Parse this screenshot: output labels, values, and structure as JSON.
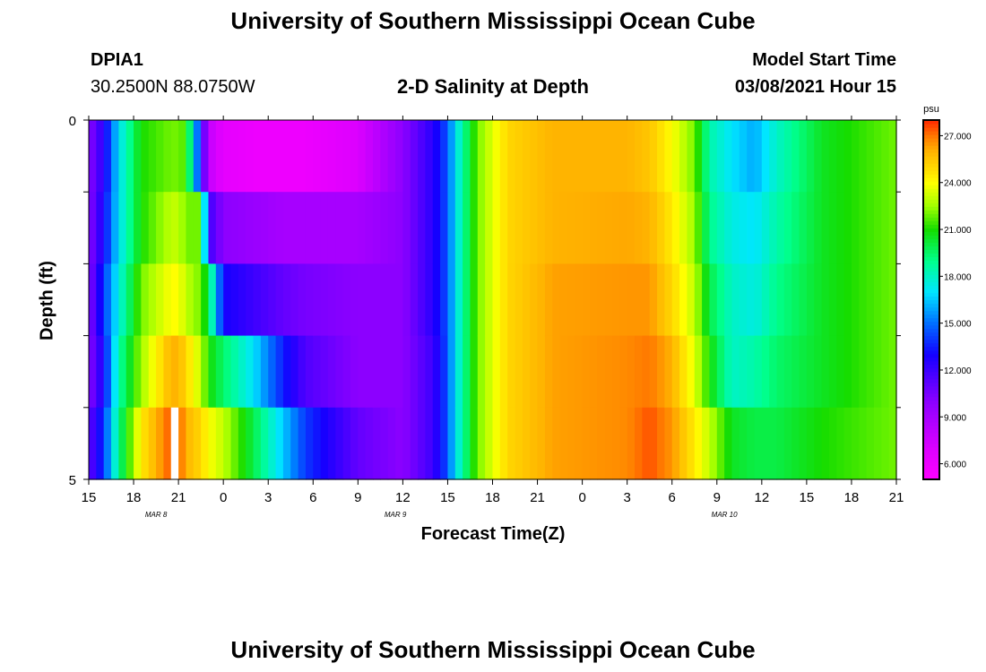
{
  "title_top": "University of Southern Mississippi Ocean Cube",
  "title_bottom": "University of Southern Mississippi Ocean Cube",
  "station": {
    "id": "DPIA1",
    "coords": "30.2500N 88.0750W"
  },
  "model": {
    "label": "Model Start Time",
    "value": "03/08/2021 Hour 15"
  },
  "chart_data": {
    "type": "heatmap",
    "title": "2-D Salinity at Depth",
    "xlabel": "Forecast Time(Z)",
    "ylabel": "Depth (ft)",
    "x_tick_labels": [
      "15",
      "18",
      "21",
      "0",
      "3",
      "6",
      "9",
      "12",
      "15",
      "18",
      "21",
      "0",
      "3",
      "6",
      "9",
      "12",
      "15",
      "18",
      "21"
    ],
    "x_start_hour": 15,
    "x_end_hour": 69,
    "date_labels": [
      {
        "hour": 19.5,
        "text": "MAR 8"
      },
      {
        "hour": 35.5,
        "text": "MAR 9"
      },
      {
        "hour": 57.5,
        "text": "MAR 10"
      }
    ],
    "y_tick_labels": [
      "0",
      "5"
    ],
    "ylim": [
      0,
      5
    ],
    "depth_layers": 5,
    "colorbar": {
      "unit": "psu",
      "min": 5.0,
      "max": 28.0,
      "tick_labels": [
        "27.000",
        "24.000",
        "21.000",
        "18.000",
        "15.000",
        "12.000",
        "9.000",
        "6.000"
      ],
      "tick_values": [
        27,
        24,
        21,
        18,
        15,
        12,
        9,
        6
      ]
    },
    "keyframes": [
      {
        "hour": 15.0,
        "layers": [
          10,
          10,
          10,
          10,
          11
        ]
      },
      {
        "hour": 16.0,
        "layers": [
          12.5,
          13,
          14,
          13,
          14
        ]
      },
      {
        "hour": 17.0,
        "layers": [
          17,
          17,
          17.5,
          18.5,
          19
        ]
      },
      {
        "hour": 18.5,
        "layers": [
          21,
          21,
          22,
          22.5,
          24.5
        ]
      },
      {
        "hour": 20.5,
        "layers": [
          22,
          23,
          24,
          26,
          27.5
        ]
      },
      {
        "hour": 21.0,
        "layers": [
          22,
          23,
          24,
          26,
          27.5
        ]
      },
      {
        "hour": 21.5,
        "layers": [
          21.5,
          22,
          23,
          25,
          26
        ]
      },
      {
        "hour": 22.5,
        "layers": [
          13,
          22,
          22,
          23,
          25
        ]
      },
      {
        "hour": 23.0,
        "layers": [
          8,
          12,
          20,
          21,
          24
        ]
      },
      {
        "hour": 24.0,
        "layers": [
          6.5,
          10,
          13,
          19.5,
          23
        ]
      },
      {
        "hour": 26.0,
        "layers": [
          6,
          9.5,
          12,
          17,
          20
        ]
      },
      {
        "hour": 28.0,
        "layers": [
          6,
          9,
          11,
          13.5,
          16.5
        ]
      },
      {
        "hour": 29.5,
        "layers": [
          6,
          9,
          10.5,
          11.5,
          14
        ]
      },
      {
        "hour": 33.0,
        "layers": [
          7,
          9,
          10,
          10,
          11
        ]
      },
      {
        "hour": 36.0,
        "layers": [
          10,
          10,
          10,
          10,
          10
        ]
      },
      {
        "hour": 38.0,
        "layers": [
          12.5,
          12.5,
          12.5,
          12,
          12
        ]
      },
      {
        "hour": 39.0,
        "layers": [
          14.5,
          14.5,
          14.5,
          14.5,
          14.5
        ]
      },
      {
        "hour": 39.5,
        "layers": [
          17,
          17,
          17,
          17,
          17
        ]
      },
      {
        "hour": 41.0,
        "layers": [
          22,
          22,
          22,
          22,
          22
        ]
      },
      {
        "hour": 43.0,
        "layers": [
          25,
          25,
          25,
          25,
          25
        ]
      },
      {
        "hour": 46.0,
        "layers": [
          26,
          26,
          26.3,
          26.3,
          26.3
        ]
      },
      {
        "hour": 51.0,
        "layers": [
          26,
          26.2,
          26.5,
          26.7,
          26.7
        ]
      },
      {
        "hour": 52.5,
        "layers": [
          25.5,
          26,
          26.5,
          27,
          27.5
        ]
      },
      {
        "hour": 54.0,
        "layers": [
          24,
          24.5,
          25,
          26,
          26.5
        ]
      },
      {
        "hour": 55.5,
        "layers": [
          22,
          22.5,
          23,
          23.5,
          24.5
        ]
      },
      {
        "hour": 56.5,
        "layers": [
          18.5,
          19,
          20,
          21,
          23
        ]
      },
      {
        "hour": 58.0,
        "layers": [
          17,
          17.5,
          18,
          18,
          20.5
        ]
      },
      {
        "hour": 59.5,
        "layers": [
          16,
          17,
          17.5,
          18.5,
          20
        ]
      },
      {
        "hour": 61.0,
        "layers": [
          18,
          18.5,
          19,
          19.5,
          20
        ]
      },
      {
        "hour": 64.0,
        "layers": [
          20.5,
          20.5,
          20.5,
          20.5,
          21
        ]
      },
      {
        "hour": 69.0,
        "layers": [
          22,
          22,
          22,
          22,
          22
        ]
      }
    ],
    "missing_cells": [
      {
        "hour": 20.5,
        "layer": 4
      }
    ]
  }
}
